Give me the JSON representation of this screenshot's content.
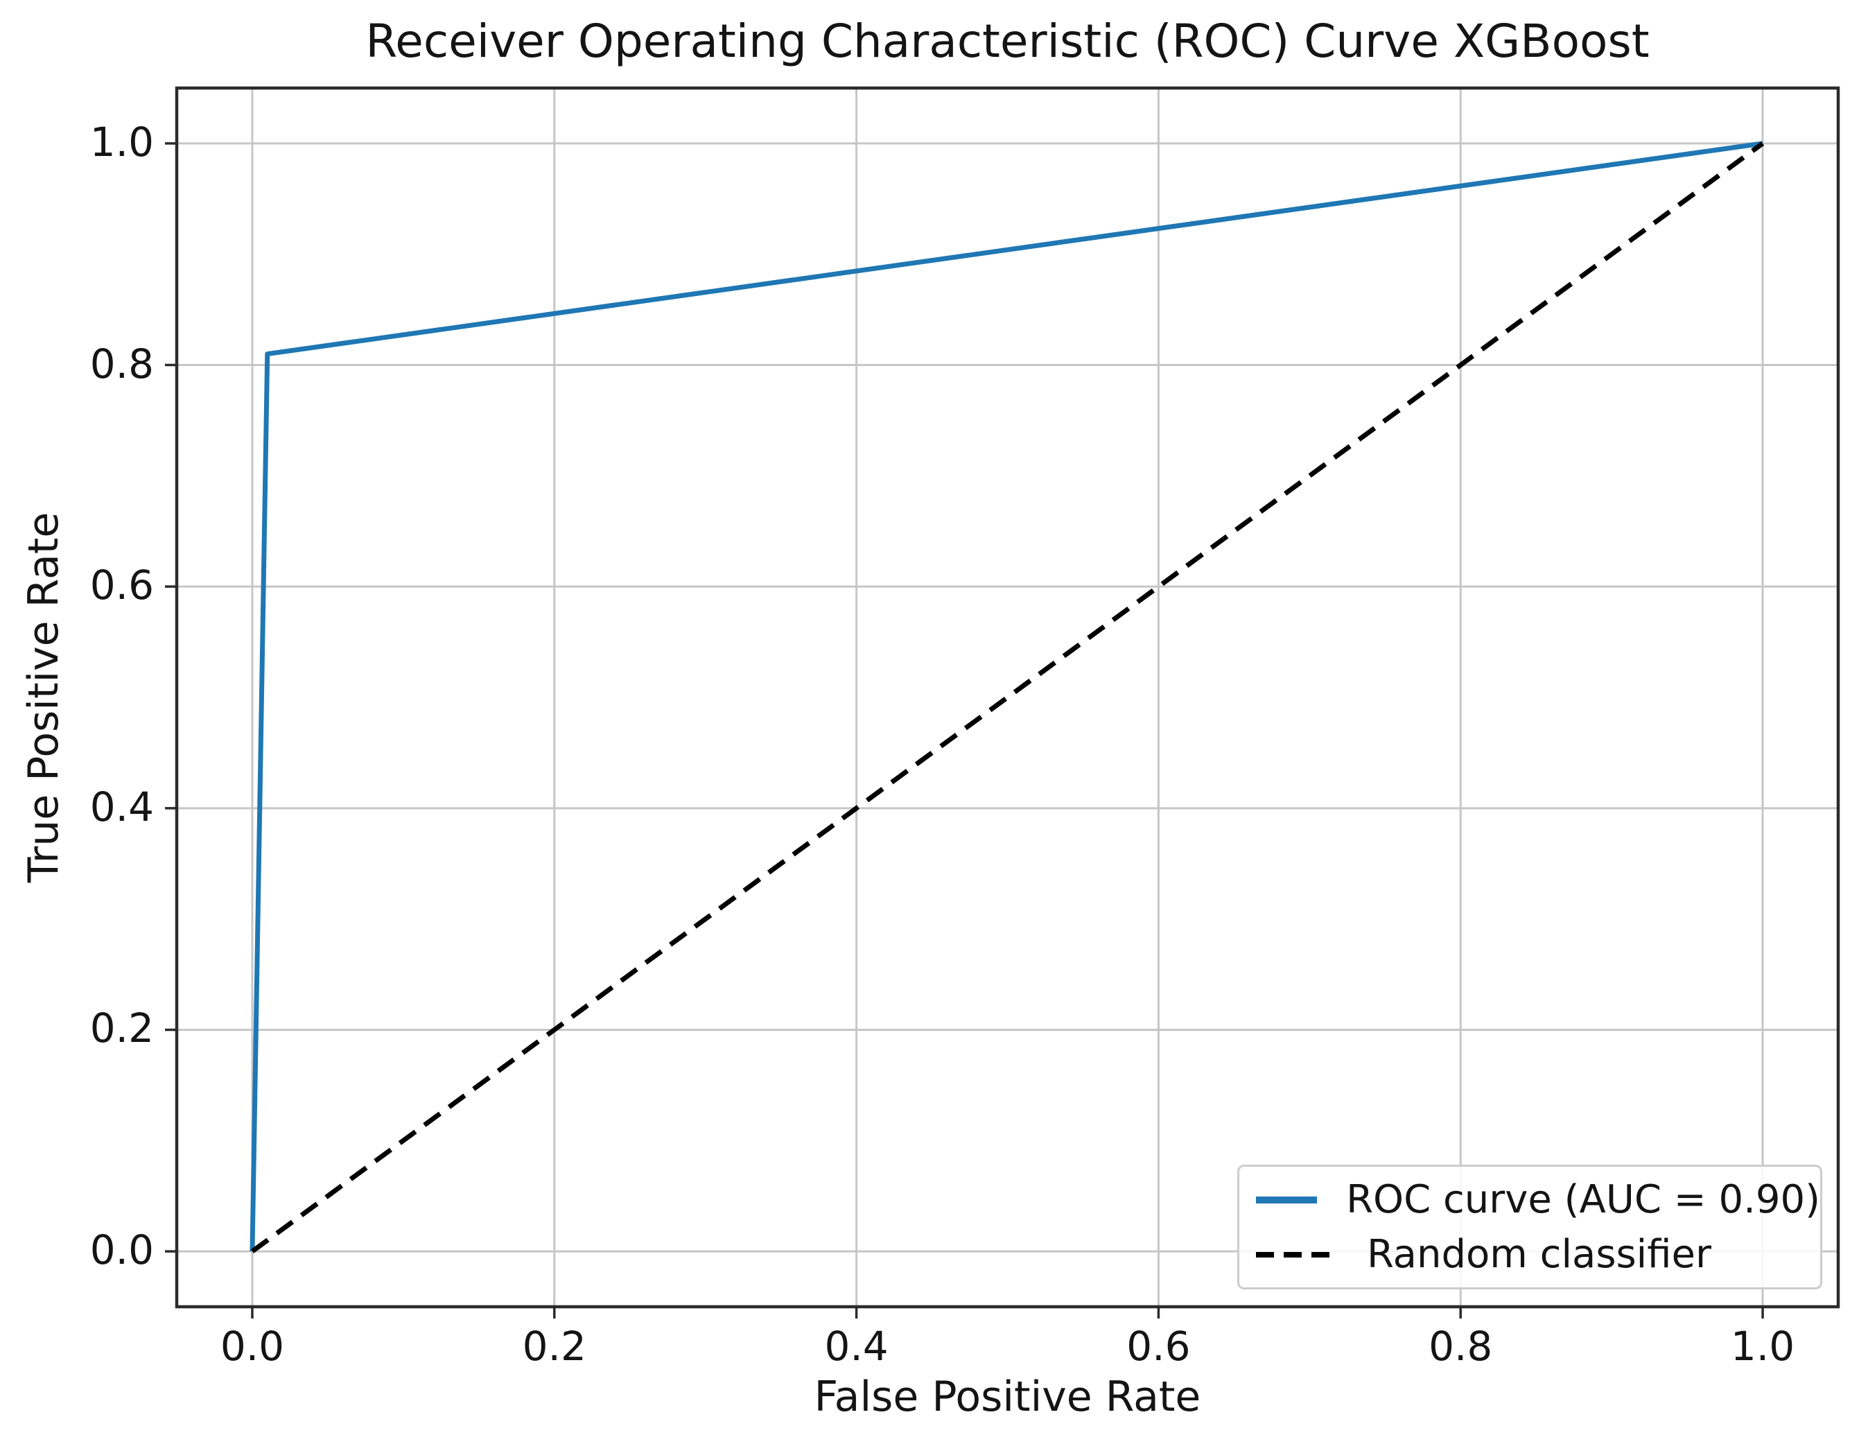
{
  "chart_data": {
    "type": "line",
    "title": "Receiver Operating Characteristic (ROC) Curve XGBoost",
    "xlabel": "False Positive Rate",
    "ylabel": "True Positive Rate",
    "xlim": [
      0.0,
      1.0
    ],
    "ylim": [
      0.0,
      1.0
    ],
    "grid": true,
    "legend_position": "lower right",
    "xtick_values": [
      0.0,
      0.2,
      0.4,
      0.6,
      0.8,
      1.0
    ],
    "ytick_values": [
      0.0,
      0.2,
      0.4,
      0.6,
      0.8,
      1.0
    ],
    "xtick_labels": [
      "0.0",
      "0.2",
      "0.4",
      "0.6",
      "0.8",
      "1.0"
    ],
    "ytick_labels": [
      "0.0",
      "0.2",
      "0.4",
      "0.6",
      "0.8",
      "1.0"
    ],
    "auc": "0.90",
    "series": [
      {
        "name": "ROC curve (AUC = 0.90)",
        "style": "solid",
        "color": "#1f77b4",
        "x": [
          0.0,
          0.01,
          1.0
        ],
        "y": [
          0.0,
          0.81,
          1.0
        ]
      },
      {
        "name": "Random classifier",
        "style": "dashed",
        "color": "#000000",
        "x": [
          0.0,
          1.0
        ],
        "y": [
          0.0,
          1.0
        ]
      }
    ]
  },
  "colors": {
    "roc_curve": "#1f77b4",
    "random_classifier": "#000000",
    "grid_line": "#c6c6c6",
    "spine": "#2b2b2b",
    "text": "#141414",
    "legend_border": "#cccccc"
  }
}
